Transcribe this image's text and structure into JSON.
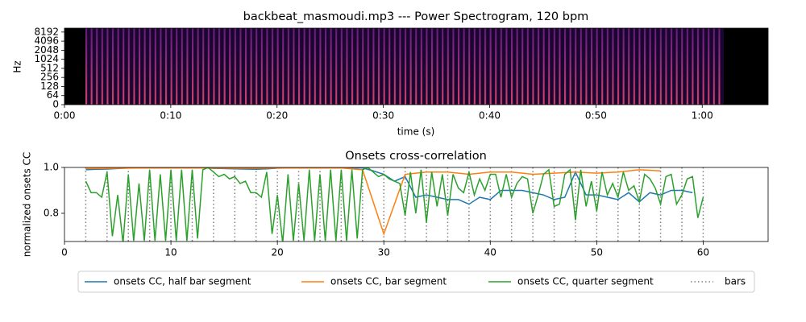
{
  "chart_data": [
    {
      "type": "spectrogram",
      "title": "backbeat_masmoudi.mp3 --- Power Spectrogram, 120 bpm",
      "xlabel": "time (s)",
      "ylabel": "Hz",
      "xlim": [
        0,
        66.2
      ],
      "ylim": [
        0,
        11025
      ],
      "yscale": "symlog",
      "linthresh": 64,
      "xticks": [
        {
          "value": 0,
          "label": "0:00"
        },
        {
          "value": 10,
          "label": "0:10"
        },
        {
          "value": 20,
          "label": "0:20"
        },
        {
          "value": 30,
          "label": "0:30"
        },
        {
          "value": 40,
          "label": "0:40"
        },
        {
          "value": 50,
          "label": "0:50"
        },
        {
          "value": 60,
          "label": "1:00"
        }
      ],
      "yticks": [
        0,
        64,
        128,
        256,
        512,
        1024,
        2048,
        4096,
        8192
      ]
    },
    {
      "type": "line",
      "title": "Onsets cross-correlation",
      "ylabel": "normalized onsets CC",
      "xlim": [
        0,
        66.1
      ],
      "ylim": [
        0.677,
        1.0
      ],
      "xticks": [
        0,
        10,
        20,
        30,
        40,
        50,
        60
      ],
      "yticks": [
        0.8,
        {
          "value": 1.0,
          "label": "1.0"
        }
      ],
      "legend": "lower center",
      "series": [
        {
          "name": "onsets CC, half bar segment",
          "color": "#1f77b4",
          "x": [
            2,
            3,
            4,
            5,
            6,
            7,
            8,
            9,
            10,
            11,
            12,
            13,
            14,
            15,
            16,
            17,
            18,
            19,
            20,
            21,
            22,
            23,
            24,
            25,
            26,
            27,
            28,
            29,
            30,
            31,
            32,
            33,
            34,
            35,
            36,
            37,
            38,
            39,
            40,
            41,
            42,
            43,
            44,
            45,
            46,
            47,
            48,
            49,
            50,
            51,
            52,
            53,
            54,
            55,
            56,
            57,
            58,
            59
          ],
          "values": [
            0.99,
            0.992,
            0.993,
            0.995,
            0.998,
            0.998,
            0.998,
            0.998,
            0.998,
            0.998,
            0.998,
            0.998,
            0.996,
            0.995,
            0.994,
            0.993,
            0.992,
            0.994,
            0.997,
            0.998,
            0.998,
            0.998,
            0.998,
            0.998,
            0.998,
            0.998,
            0.998,
            0.985,
            0.97,
            0.94,
            0.96,
            0.87,
            0.88,
            0.87,
            0.86,
            0.86,
            0.84,
            0.87,
            0.86,
            0.9,
            0.9,
            0.9,
            0.89,
            0.88,
            0.86,
            0.87,
            0.98,
            0.88,
            0.88,
            0.87,
            0.86,
            0.89,
            0.85,
            0.89,
            0.88,
            0.9,
            0.9,
            0.89
          ]
        },
        {
          "name": "onsets CC, bar segment",
          "color": "#ff7f0e",
          "x": [
            2,
            4,
            6,
            8,
            10,
            12,
            14,
            16,
            18,
            20,
            22,
            24,
            26,
            28,
            30,
            32,
            34,
            36,
            38,
            40,
            42,
            44,
            46,
            48,
            50,
            52,
            54,
            56
          ],
          "values": [
            0.995,
            0.996,
            0.997,
            0.998,
            0.998,
            0.998,
            0.998,
            0.997,
            0.997,
            0.998,
            0.998,
            0.998,
            0.998,
            0.99,
            0.71,
            0.97,
            0.98,
            0.98,
            0.97,
            0.98,
            0.98,
            0.97,
            0.975,
            0.98,
            0.975,
            0.98,
            0.99,
            0.985
          ]
        },
        {
          "name": "onsets CC, quarter segment",
          "color": "#2ca02c",
          "x": [
            2,
            2.5,
            3,
            3.5,
            4,
            4.5,
            5,
            5.5,
            6,
            6.5,
            7,
            7.5,
            8,
            8.5,
            9,
            9.5,
            10,
            10.5,
            11,
            11.5,
            12,
            12.5,
            13,
            13.5,
            14,
            14.5,
            15,
            15.5,
            16,
            16.5,
            17,
            17.5,
            18,
            18.5,
            19,
            19.5,
            20,
            20.5,
            21,
            21.5,
            22,
            22.5,
            23,
            23.5,
            24,
            24.5,
            25,
            25.5,
            26,
            26.5,
            27,
            27.5,
            28,
            28.5,
            29,
            29.5,
            30,
            30.5,
            31,
            31.5,
            32,
            32.5,
            33,
            33.5,
            34,
            34.5,
            35,
            35.5,
            36,
            36.5,
            37,
            37.5,
            38,
            38.5,
            39,
            39.5,
            40,
            40.5,
            41,
            41.5,
            42,
            42.5,
            43,
            43.5,
            44,
            44.5,
            45,
            45.5,
            46,
            46.5,
            47,
            47.5,
            48,
            48.5,
            49,
            49.5,
            50,
            50.5,
            51,
            51.5,
            52,
            52.5,
            53,
            53.5,
            54,
            54.5,
            55,
            55.5,
            56,
            56.5,
            57,
            57.5,
            58,
            58.5,
            59,
            59.5,
            60
          ],
          "values": [
            0.94,
            0.89,
            0.89,
            0.87,
            0.98,
            0.7,
            0.88,
            0.67,
            0.97,
            0.68,
            0.93,
            0.68,
            0.99,
            0.68,
            0.97,
            0.68,
            0.99,
            0.68,
            0.99,
            0.68,
            0.99,
            0.69,
            0.99,
            1.0,
            0.98,
            0.96,
            0.97,
            0.95,
            0.96,
            0.93,
            0.94,
            0.89,
            0.89,
            0.87,
            0.98,
            0.71,
            0.88,
            0.67,
            0.97,
            0.68,
            0.93,
            0.68,
            0.99,
            0.68,
            0.97,
            0.68,
            0.99,
            0.68,
            0.99,
            0.68,
            0.99,
            0.69,
            0.99,
            1.0,
            0.98,
            0.96,
            0.97,
            0.95,
            0.94,
            0.93,
            0.79,
            0.98,
            0.8,
            0.99,
            0.76,
            0.98,
            0.83,
            0.97,
            0.79,
            0.97,
            0.91,
            0.89,
            0.98,
            0.88,
            0.95,
            0.9,
            0.97,
            0.97,
            0.87,
            0.97,
            0.87,
            0.93,
            0.96,
            0.95,
            0.8,
            0.88,
            0.97,
            0.99,
            0.83,
            0.84,
            0.97,
            0.99,
            0.77,
            0.99,
            0.83,
            0.94,
            0.81,
            0.98,
            0.88,
            0.93,
            0.87,
            0.98,
            0.9,
            0.92,
            0.85,
            0.97,
            0.95,
            0.91,
            0.84,
            0.96,
            0.97,
            0.84,
            0.88,
            0.95,
            0.96,
            0.78,
            0.87
          ]
        }
      ],
      "vlines": {
        "name": "bars",
        "color": "#808080",
        "x": [
          2,
          4,
          6,
          8,
          10,
          12,
          14,
          16,
          18,
          20,
          22,
          24,
          26,
          28,
          30,
          32,
          34,
          36,
          38,
          40,
          42,
          44,
          46,
          48,
          50,
          52,
          54,
          56,
          58,
          60
        ]
      }
    }
  ]
}
